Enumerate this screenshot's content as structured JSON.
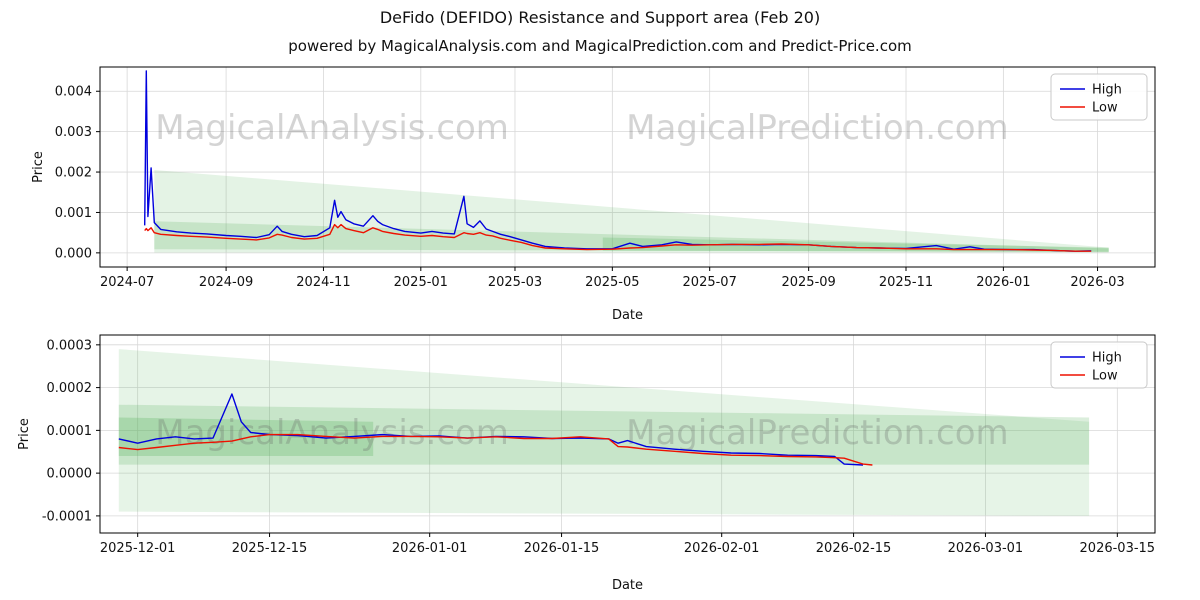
{
  "page": {
    "title": "DeFido (DEFIDO) Resistance and Support area (Feb 20)",
    "subtitle": "powered by MagicalAnalysis.com and MagicalPrediction.com and Predict-Price.com"
  },
  "colors": {
    "high": "#0000dd",
    "low": "#ee1100",
    "band": "#59b25f",
    "grid": "#d8d8d8",
    "watermark": "rgba(100,100,100,0.28)",
    "spine": "#000000"
  },
  "chart_data": [
    {
      "type": "line",
      "title": "",
      "xlabel": "Date",
      "ylabel": "Price",
      "grid": true,
      "legend_position": "upper right",
      "xrange": [
        "2024-06-14",
        "2026-04-06"
      ],
      "ylim": [
        -0.00035,
        0.0046
      ],
      "yticks": [
        0.0,
        0.001,
        0.002,
        0.003,
        0.004
      ],
      "ytick_labels": [
        "0.000",
        "0.001",
        "0.002",
        "0.003",
        "0.004"
      ],
      "xticks": [
        "2024-07-01",
        "2024-09-01",
        "2024-11-01",
        "2025-01-01",
        "2025-03-01",
        "2025-05-01",
        "2025-07-01",
        "2025-09-01",
        "2025-11-01",
        "2026-01-01",
        "2026-03-01"
      ],
      "xtick_labels": [
        "2024-07",
        "2024-09",
        "2024-11",
        "2025-01",
        "2025-03",
        "2025-05",
        "2025-07",
        "2025-09",
        "2025-11",
        "2026-01",
        "2026-03"
      ],
      "watermarks": [
        "MagicalAnalysis.com",
        "MagicalPrediction.com"
      ],
      "series": [
        {
          "name": "High",
          "color_key": "high"
        },
        {
          "name": "Low",
          "color_key": "low"
        }
      ],
      "points": [
        [
          "2024-07-12",
          0.00068,
          0.00055
        ],
        [
          "2024-07-13",
          0.0045,
          0.0006
        ],
        [
          "2024-07-14",
          0.0009,
          0.00055
        ],
        [
          "2024-07-16",
          0.0021,
          0.00062
        ],
        [
          "2024-07-18",
          0.00075,
          0.0005
        ],
        [
          "2024-07-22",
          0.00058,
          0.00046
        ],
        [
          "2024-08-01",
          0.00052,
          0.00043
        ],
        [
          "2024-08-10",
          0.00049,
          0.00041
        ],
        [
          "2024-08-20",
          0.00047,
          0.00039
        ],
        [
          "2024-09-01",
          0.00043,
          0.00036
        ],
        [
          "2024-09-10",
          0.00041,
          0.00034
        ],
        [
          "2024-09-20",
          0.00038,
          0.00032
        ],
        [
          "2024-09-28",
          0.00045,
          0.00037
        ],
        [
          "2024-10-03",
          0.00066,
          0.00046
        ],
        [
          "2024-10-06",
          0.00053,
          0.00044
        ],
        [
          "2024-10-12",
          0.00046,
          0.00038
        ],
        [
          "2024-10-20",
          0.0004,
          0.00034
        ],
        [
          "2024-10-28",
          0.00043,
          0.00036
        ],
        [
          "2024-11-05",
          0.00062,
          0.00046
        ],
        [
          "2024-11-08",
          0.0013,
          0.0007
        ],
        [
          "2024-11-10",
          0.00088,
          0.00062
        ],
        [
          "2024-11-12",
          0.00102,
          0.0007
        ],
        [
          "2024-11-15",
          0.00082,
          0.0006
        ],
        [
          "2024-11-20",
          0.00072,
          0.00055
        ],
        [
          "2024-11-26",
          0.00066,
          0.0005
        ],
        [
          "2024-12-02",
          0.00092,
          0.00062
        ],
        [
          "2024-12-05",
          0.00078,
          0.00058
        ],
        [
          "2024-12-08",
          0.0007,
          0.00053
        ],
        [
          "2024-12-15",
          0.0006,
          0.00048
        ],
        [
          "2024-12-22",
          0.00053,
          0.00044
        ],
        [
          "2025-01-01",
          0.00049,
          0.00041
        ],
        [
          "2025-01-08",
          0.00053,
          0.00043
        ],
        [
          "2025-01-15",
          0.00049,
          0.0004
        ],
        [
          "2025-01-22",
          0.00047,
          0.00038
        ],
        [
          "2025-01-28",
          0.0014,
          0.0005
        ],
        [
          "2025-01-30",
          0.00072,
          0.00048
        ],
        [
          "2025-02-03",
          0.00063,
          0.00046
        ],
        [
          "2025-02-07",
          0.00079,
          0.0005
        ],
        [
          "2025-02-11",
          0.00059,
          0.00044
        ],
        [
          "2025-02-15",
          0.00053,
          0.00042
        ],
        [
          "2025-02-20",
          0.00046,
          0.00036
        ],
        [
          "2025-02-26",
          0.0004,
          0.00031
        ],
        [
          "2025-03-05",
          0.00032,
          0.00026
        ],
        [
          "2025-03-12",
          0.00024,
          0.00018
        ],
        [
          "2025-03-20",
          0.00016,
          0.00012
        ],
        [
          "2025-04-01",
          0.00012,
          0.0001
        ],
        [
          "2025-04-15",
          0.0001,
          8e-05
        ],
        [
          "2025-05-01",
          0.0001,
          9e-05
        ],
        [
          "2025-05-12",
          0.00024,
          0.00012
        ],
        [
          "2025-05-20",
          0.00016,
          0.00013
        ],
        [
          "2025-06-01",
          0.0002,
          0.00017
        ],
        [
          "2025-06-10",
          0.00027,
          0.0002
        ],
        [
          "2025-06-20",
          0.00021,
          0.00019
        ],
        [
          "2025-07-01",
          0.0002,
          0.0002
        ],
        [
          "2025-07-15",
          0.00021,
          0.00021
        ],
        [
          "2025-08-01",
          0.0002,
          0.00021
        ],
        [
          "2025-08-15",
          0.00021,
          0.00022
        ],
        [
          "2025-09-01",
          0.0002,
          0.0002
        ],
        [
          "2025-09-15",
          0.00016,
          0.00016
        ],
        [
          "2025-10-01",
          0.00013,
          0.00013
        ],
        [
          "2025-10-15",
          0.00012,
          0.00012
        ],
        [
          "2025-11-01",
          0.00011,
          0.0001
        ],
        [
          "2025-11-20",
          0.00018,
          0.0001
        ],
        [
          "2025-12-01",
          9e-05,
          8e-05
        ],
        [
          "2025-12-11",
          0.00015,
          8e-05
        ],
        [
          "2025-12-20",
          9e-05,
          8e-05
        ],
        [
          "2026-01-05",
          8e-05,
          8e-05
        ],
        [
          "2026-01-20",
          8e-05,
          7e-05
        ],
        [
          "2026-02-01",
          6e-05,
          6e-05
        ],
        [
          "2026-02-15",
          4e-05,
          4e-05
        ],
        [
          "2026-02-25",
          5e-05,
          4e-05
        ]
      ],
      "bands": [
        {
          "alpha": 0.16,
          "points": [
            [
              "2024-07-18",
              0.00205
            ],
            [
              "2026-03-08",
              0.00013
            ],
            [
              "2026-03-08",
              1e-05
            ],
            [
              "2024-07-18",
              1e-05
            ]
          ]
        },
        {
          "alpha": 0.22,
          "points": [
            [
              "2024-07-18",
              0.00078
            ],
            [
              "2026-03-08",
              0.00011
            ],
            [
              "2026-03-08",
              2e-05
            ],
            [
              "2024-07-18",
              9e-05
            ]
          ]
        },
        {
          "alpha": 0.25,
          "points": [
            [
              "2025-04-25",
              0.00038
            ],
            [
              "2026-03-08",
              0.00013
            ],
            [
              "2026-03-08",
              3e-05
            ],
            [
              "2025-04-25",
              5e-05
            ]
          ]
        }
      ]
    },
    {
      "type": "line",
      "title": "",
      "xlabel": "Date",
      "ylabel": "Price",
      "grid": true,
      "legend_position": "upper right",
      "xrange": [
        "2025-11-27",
        "2026-03-19"
      ],
      "ylim": [
        -0.00014,
        0.000323
      ],
      "yticks": [
        -0.0001,
        0.0,
        0.0001,
        0.0002,
        0.0003
      ],
      "ytick_labels": [
        "-0.0001",
        "0.0000",
        "0.0001",
        "0.0002",
        "0.0003"
      ],
      "xticks": [
        "2025-12-01",
        "2025-12-15",
        "2026-01-01",
        "2026-01-15",
        "2026-02-01",
        "2026-02-15",
        "2026-03-01",
        "2026-03-15"
      ],
      "xtick_labels": [
        "2025-12-01",
        "2025-12-15",
        "2026-01-01",
        "2026-01-15",
        "2026-02-01",
        "2026-02-15",
        "2026-03-01",
        "2026-03-15"
      ],
      "watermarks": [
        "MagicalAnalysis.com",
        "MagicalPrediction.com"
      ],
      "series": [
        {
          "name": "High",
          "color_key": "high"
        },
        {
          "name": "Low",
          "color_key": "low"
        }
      ],
      "points": [
        [
          "2025-11-29",
          8e-05,
          6e-05
        ],
        [
          "2025-12-01",
          7e-05,
          5.5e-05
        ],
        [
          "2025-12-03",
          8e-05,
          6e-05
        ],
        [
          "2025-12-05",
          8.5e-05,
          6.5e-05
        ],
        [
          "2025-12-07",
          8e-05,
          7e-05
        ],
        [
          "2025-12-09",
          8.2e-05,
          7.2e-05
        ],
        [
          "2025-12-11",
          0.000185,
          7.5e-05
        ],
        [
          "2025-12-12",
          0.00012,
          8e-05
        ],
        [
          "2025-12-13",
          9.5e-05,
          8.5e-05
        ],
        [
          "2025-12-15",
          9e-05,
          9e-05
        ],
        [
          "2025-12-18",
          8.8e-05,
          9e-05
        ],
        [
          "2025-12-21",
          8.2e-05,
          8.6e-05
        ],
        [
          "2025-12-24",
          8.6e-05,
          8.2e-05
        ],
        [
          "2025-12-27",
          9e-05,
          8.6e-05
        ],
        [
          "2025-12-30",
          8.6e-05,
          8.6e-05
        ],
        [
          "2026-01-02",
          8.7e-05,
          8.5e-05
        ],
        [
          "2026-01-05",
          8.2e-05,
          8.2e-05
        ],
        [
          "2026-01-08",
          8.6e-05,
          8.5e-05
        ],
        [
          "2026-01-11",
          8.5e-05,
          8.1e-05
        ],
        [
          "2026-01-14",
          8.1e-05,
          8.1e-05
        ],
        [
          "2026-01-17",
          8.2e-05,
          8.5e-05
        ],
        [
          "2026-01-20",
          8e-05,
          8e-05
        ],
        [
          "2026-01-21",
          7e-05,
          6.2e-05
        ],
        [
          "2026-01-22",
          7.6e-05,
          6.1e-05
        ],
        [
          "2026-01-24",
          6.2e-05,
          5.6e-05
        ],
        [
          "2026-01-27",
          5.6e-05,
          5.1e-05
        ],
        [
          "2026-01-30",
          5.1e-05,
          4.6e-05
        ],
        [
          "2026-02-02",
          4.7e-05,
          4.2e-05
        ],
        [
          "2026-02-05",
          4.6e-05,
          4.1e-05
        ],
        [
          "2026-02-08",
          4.2e-05,
          3.9e-05
        ],
        [
          "2026-02-11",
          4.1e-05,
          3.8e-05
        ],
        [
          "2026-02-13",
          3.9e-05,
          3.6e-05
        ],
        [
          "2026-02-14",
          2.1e-05,
          3.5e-05
        ],
        [
          "2026-02-16",
          1.9e-05,
          2.1e-05
        ],
        [
          "2026-02-17",
          null,
          1.9e-05
        ]
      ],
      "bands": [
        {
          "alpha": 0.15,
          "points": [
            [
              "2025-11-29",
              0.00029
            ],
            [
              "2026-03-12",
              0.00012
            ],
            [
              "2026-03-12",
              -0.0001
            ],
            [
              "2025-11-29",
              -9e-05
            ]
          ]
        },
        {
          "alpha": 0.22,
          "points": [
            [
              "2025-11-29",
              0.00016
            ],
            [
              "2026-03-12",
              0.00013
            ],
            [
              "2026-03-12",
              2e-05
            ],
            [
              "2025-11-29",
              2e-05
            ]
          ]
        },
        {
          "alpha": 0.28,
          "points": [
            [
              "2025-11-29",
              0.00013
            ],
            [
              "2025-12-26",
              0.00012
            ],
            [
              "2025-12-26",
              4e-05
            ],
            [
              "2025-11-29",
              4e-05
            ]
          ]
        }
      ]
    }
  ]
}
